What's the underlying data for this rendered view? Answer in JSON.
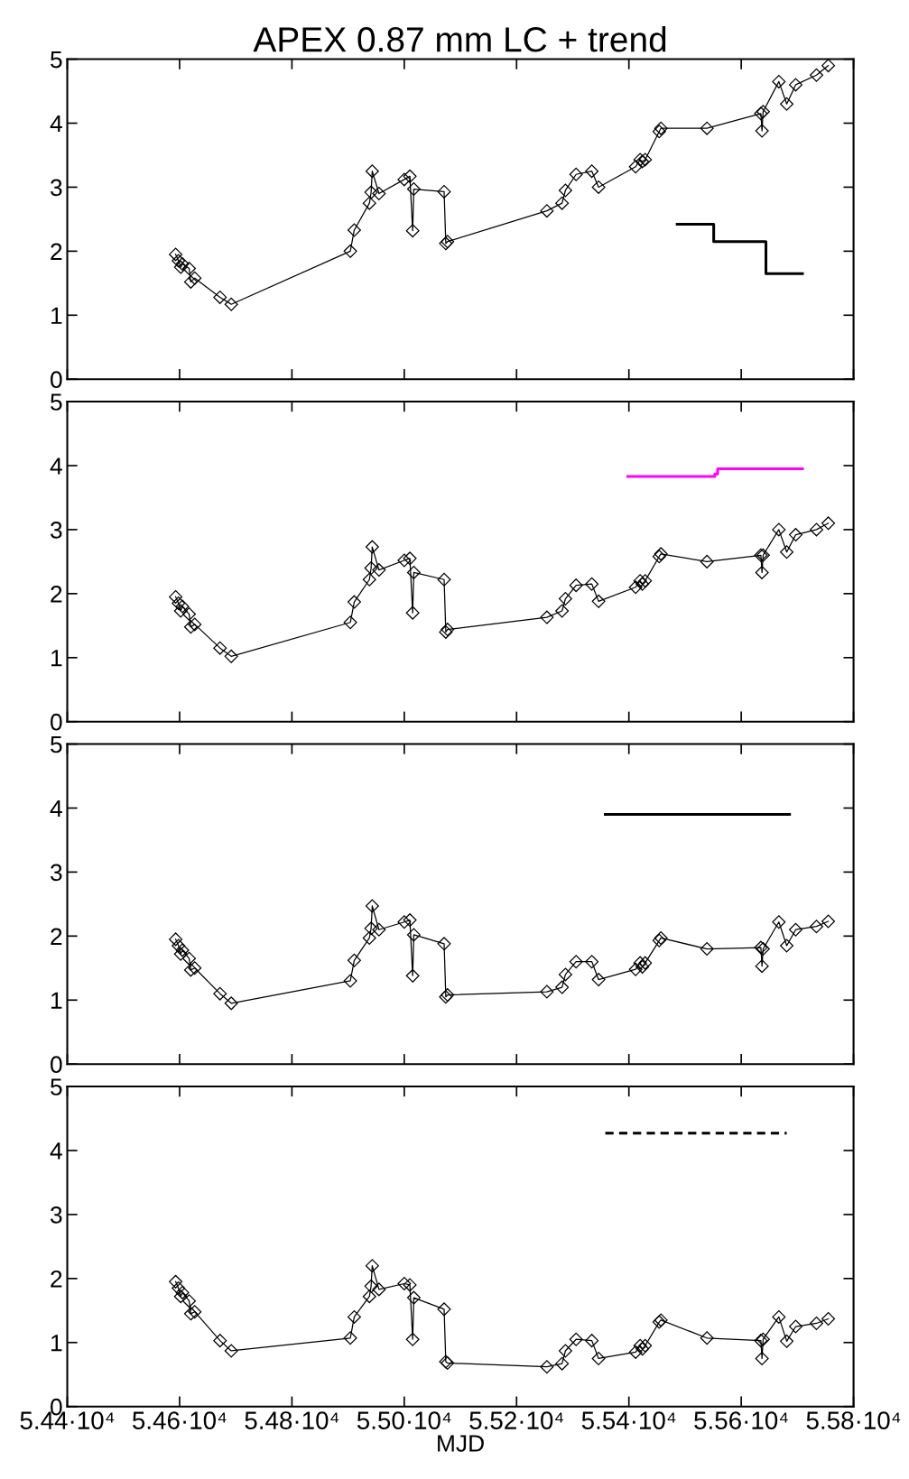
{
  "chart_data": [
    {
      "type": "line",
      "title": "APEX 0.87 mm LC + trend",
      "xlim": [
        54400,
        55800
      ],
      "ylim": [
        0,
        5
      ],
      "yticks": [
        0,
        1,
        2,
        3,
        4,
        5
      ],
      "tick_labels": "y",
      "grid": false,
      "legend": false,
      "x": [
        54593,
        54598,
        54602,
        54605,
        54617,
        54620,
        54627,
        54672,
        54692,
        54904,
        54911,
        54938,
        54941,
        54943,
        54955,
        55000,
        55010,
        55015,
        55017,
        55071,
        55074,
        55077,
        55254,
        55281,
        55287,
        55306,
        55334,
        55346,
        55412,
        55420,
        55424,
        55429,
        55454,
        55457,
        55539,
        55635,
        55637,
        55639,
        55667,
        55681,
        55697,
        55734,
        55755
      ],
      "series": [
        {
          "color": "#000000",
          "marker": "diamond",
          "values": [
            1.95,
            1.85,
            1.75,
            1.8,
            1.73,
            1.52,
            1.58,
            1.28,
            1.17,
            2.0,
            2.33,
            2.75,
            2.92,
            3.25,
            2.9,
            3.12,
            3.17,
            2.32,
            2.97,
            2.93,
            2.12,
            2.15,
            2.63,
            2.75,
            2.95,
            3.2,
            3.25,
            3.0,
            3.32,
            3.43,
            3.4,
            3.43,
            3.87,
            3.92,
            3.92,
            4.15,
            3.88,
            4.18,
            4.65,
            4.3,
            4.6,
            4.75,
            4.9
          ]
        },
        {
          "type": "step",
          "color": "#000000",
          "x": [
            55486,
            55551,
            55644,
            55709
          ],
          "values": [
            2.42,
            2.15,
            1.65,
            1.65
          ]
        }
      ]
    },
    {
      "type": "line",
      "xlim": [
        54400,
        55800
      ],
      "ylim": [
        0,
        5
      ],
      "yticks": [
        0,
        1,
        2,
        3,
        4,
        5
      ],
      "tick_labels": "y",
      "grid": false,
      "legend": false,
      "x": [
        54593,
        54598,
        54602,
        54605,
        54617,
        54620,
        54627,
        54672,
        54692,
        54904,
        54911,
        54938,
        54941,
        54943,
        54955,
        55000,
        55010,
        55015,
        55017,
        55071,
        55074,
        55077,
        55254,
        55281,
        55287,
        55306,
        55334,
        55346,
        55412,
        55420,
        55424,
        55429,
        55454,
        55457,
        55539,
        55635,
        55637,
        55639,
        55667,
        55681,
        55697,
        55734,
        55755
      ],
      "series": [
        {
          "color": "#000000",
          "marker": "diamond",
          "values": [
            1.95,
            1.85,
            1.73,
            1.8,
            1.68,
            1.48,
            1.52,
            1.15,
            1.02,
            1.55,
            1.87,
            2.22,
            2.4,
            2.73,
            2.37,
            2.52,
            2.55,
            1.7,
            2.33,
            2.22,
            1.4,
            1.44,
            1.63,
            1.73,
            1.92,
            2.13,
            2.15,
            1.88,
            2.1,
            2.2,
            2.15,
            2.2,
            2.58,
            2.62,
            2.5,
            2.6,
            2.33,
            2.6,
            3.0,
            2.65,
            2.92,
            3.0,
            3.1
          ]
        },
        {
          "type": "step",
          "color": "#ff00ff",
          "x": [
            55398,
            55553,
            55558,
            55709
          ],
          "values": [
            3.83,
            3.87,
            3.95,
            3.95
          ]
        }
      ]
    },
    {
      "type": "line",
      "xlim": [
        54400,
        55800
      ],
      "ylim": [
        0,
        5
      ],
      "yticks": [
        0,
        1,
        2,
        3,
        4,
        5
      ],
      "tick_labels": "y",
      "grid": false,
      "legend": false,
      "x": [
        54593,
        54598,
        54602,
        54605,
        54617,
        54620,
        54627,
        54672,
        54692,
        54904,
        54911,
        54938,
        54941,
        54943,
        54955,
        55000,
        55010,
        55015,
        55017,
        55071,
        55074,
        55077,
        55254,
        55281,
        55287,
        55306,
        55334,
        55346,
        55412,
        55420,
        55424,
        55429,
        55454,
        55457,
        55539,
        55635,
        55637,
        55639,
        55667,
        55681,
        55697,
        55734,
        55755
      ],
      "series": [
        {
          "color": "#000000",
          "marker": "diamond",
          "values": [
            1.95,
            1.85,
            1.72,
            1.78,
            1.65,
            1.47,
            1.5,
            1.1,
            0.95,
            1.3,
            1.62,
            1.97,
            2.12,
            2.47,
            2.1,
            2.22,
            2.25,
            1.38,
            2.02,
            1.88,
            1.05,
            1.08,
            1.13,
            1.2,
            1.4,
            1.6,
            1.6,
            1.32,
            1.48,
            1.58,
            1.52,
            1.58,
            1.93,
            1.97,
            1.8,
            1.82,
            1.53,
            1.8,
            2.22,
            1.85,
            2.1,
            2.15,
            2.23
          ]
        },
        {
          "type": "line",
          "color": "#000000",
          "x": [
            55358,
            55686
          ],
          "values": [
            3.9,
            3.9
          ]
        }
      ]
    },
    {
      "type": "line",
      "xlabel": "MJD",
      "xlim": [
        54400,
        55800
      ],
      "ylim": [
        0,
        5
      ],
      "yticks": [
        0,
        1,
        2,
        3,
        4,
        5
      ],
      "xticks": [
        {
          "value": 54400,
          "label": "5.44·10⁴"
        },
        {
          "value": 54600,
          "label": "5.46·10⁴"
        },
        {
          "value": 54800,
          "label": "5.48·10⁴"
        },
        {
          "value": 55000,
          "label": "5.50·10⁴"
        },
        {
          "value": 55200,
          "label": "5.52·10⁴"
        },
        {
          "value": 55400,
          "label": "5.54·10⁴"
        },
        {
          "value": 55600,
          "label": "5.56·10⁴"
        },
        {
          "value": 55800,
          "label": "5.58·10⁴"
        }
      ],
      "grid": false,
      "legend": false,
      "x": [
        54593,
        54598,
        54602,
        54605,
        54617,
        54620,
        54627,
        54672,
        54692,
        54904,
        54911,
        54938,
        54941,
        54943,
        54955,
        55000,
        55010,
        55015,
        55017,
        55071,
        55074,
        55077,
        55254,
        55281,
        55287,
        55306,
        55334,
        55346,
        55412,
        55420,
        55424,
        55429,
        55454,
        55457,
        55539,
        55635,
        55637,
        55639,
        55667,
        55681,
        55697,
        55734,
        55755
      ],
      "series": [
        {
          "color": "#000000",
          "marker": "diamond",
          "values": [
            1.95,
            1.85,
            1.72,
            1.78,
            1.65,
            1.45,
            1.48,
            1.03,
            0.87,
            1.07,
            1.4,
            1.72,
            1.88,
            2.2,
            1.83,
            1.92,
            1.9,
            1.05,
            1.7,
            1.52,
            0.7,
            0.68,
            0.62,
            0.67,
            0.87,
            1.05,
            1.03,
            0.75,
            0.85,
            0.95,
            0.9,
            0.95,
            1.32,
            1.35,
            1.07,
            1.03,
            0.75,
            1.05,
            1.4,
            1.02,
            1.25,
            1.3,
            1.37
          ]
        },
        {
          "type": "line",
          "color": "#000000",
          "line_style": "dashed",
          "x": [
            55358,
            55681
          ],
          "values": [
            4.27,
            4.27
          ]
        }
      ]
    }
  ]
}
